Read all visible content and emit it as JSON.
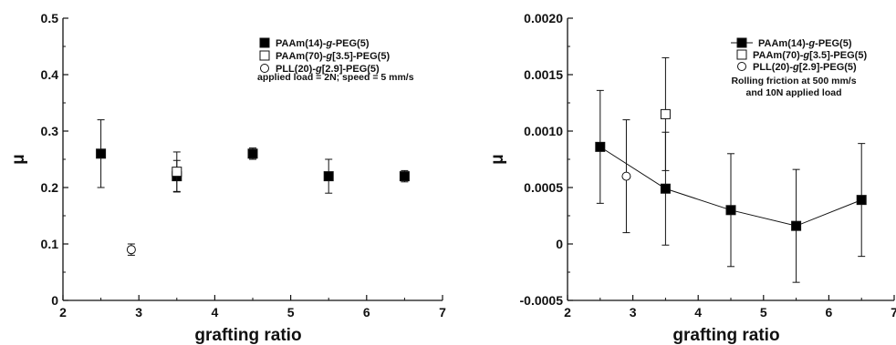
{
  "chart_data": [
    {
      "type": "scatter",
      "xlabel": "grafting ratio",
      "ylabel": "μ",
      "xlim": [
        2,
        7
      ],
      "ylim": [
        0,
        0.5
      ],
      "x_ticks": [
        "2",
        "3",
        "4",
        "5",
        "6",
        "7"
      ],
      "y_ticks": [
        "0",
        "0.1",
        "0.2",
        "0.3",
        "0.4",
        "0.5"
      ],
      "legend_position": "top-right",
      "series": [
        {
          "name": "PAAm(14)-g-PEG(5)",
          "marker": "filled-square",
          "connected": false,
          "points": [
            {
              "x": 2.5,
              "y": 0.26,
              "err": 0.06
            },
            {
              "x": 3.5,
              "y": 0.22,
              "err": 0.028
            },
            {
              "x": 4.5,
              "y": 0.26,
              "err": 0.01
            },
            {
              "x": 5.5,
              "y": 0.22,
              "err": 0.03
            },
            {
              "x": 6.5,
              "y": 0.22,
              "err": 0.01
            }
          ]
        },
        {
          "name": "PAAm(70)-g[3.5]-PEG(5)",
          "marker": "open-square",
          "connected": false,
          "points": [
            {
              "x": 3.5,
              "y": 0.228,
              "err": 0.035
            }
          ]
        },
        {
          "name": "PLL(20)-g[2.9]-PEG(5)",
          "marker": "open-circle",
          "connected": false,
          "points": [
            {
              "x": 2.9,
              "y": 0.09,
              "err": 0.01
            }
          ]
        }
      ],
      "legend_labels": [
        {
          "pre": "PAAm(14)-",
          "ital": "g",
          "post": "-PEG(5)"
        },
        {
          "pre": "PAAm(70)-",
          "ital": "g",
          "post": "[3.5]-PEG(5)"
        },
        {
          "pre": "PLL(20)-",
          "ital": "g",
          "post": "[2.9]-PEG(5)"
        }
      ],
      "annotation": [
        "applied load = 2N; speed = 5 mm/s"
      ]
    },
    {
      "type": "scatter",
      "xlabel": "grafting ratio",
      "ylabel": "μ",
      "xlim": [
        2,
        7
      ],
      "ylim": [
        -0.0005,
        0.002
      ],
      "x_ticks": [
        "2",
        "3",
        "4",
        "5",
        "6",
        "7"
      ],
      "y_ticks": [
        "-0.0005",
        "0",
        "0.0005",
        "0.0010",
        "0.0015",
        "0.0020"
      ],
      "legend_position": "top-right",
      "series": [
        {
          "name": "PAAm(14)-g-PEG(5)",
          "marker": "filled-square",
          "connected": true,
          "points": [
            {
              "x": 2.5,
              "y": 0.00086,
              "err": 0.0005
            },
            {
              "x": 3.5,
              "y": 0.00049,
              "err": 0.0005
            },
            {
              "x": 4.5,
              "y": 0.0003,
              "err": 0.0005
            },
            {
              "x": 5.5,
              "y": 0.00016,
              "err": 0.0005
            },
            {
              "x": 6.5,
              "y": 0.00039,
              "err": 0.0005
            }
          ]
        },
        {
          "name": "PAAm(70)-g[3.5]-PEG(5)",
          "marker": "open-square",
          "connected": false,
          "points": [
            {
              "x": 3.5,
              "y": 0.00115,
              "err": 0.0005
            }
          ]
        },
        {
          "name": "PLL(20)-g[2.9]-PEG(5)",
          "marker": "open-circle",
          "connected": false,
          "points": [
            {
              "x": 2.9,
              "y": 0.0006,
              "err": 0.0005
            }
          ]
        }
      ],
      "legend_labels": [
        {
          "pre": "PAAm(14)-",
          "ital": "g",
          "post": "-PEG(5)"
        },
        {
          "pre": "PAAm(70)-",
          "ital": "g",
          "post": "[3.5]-PEG(5)"
        },
        {
          "pre": "PLL(20)-",
          "ital": "g",
          "post": "[2.9]-PEG(5)"
        }
      ],
      "annotation": [
        "Rolling friction at 500 mm/s",
        "and 10N applied load"
      ]
    }
  ]
}
